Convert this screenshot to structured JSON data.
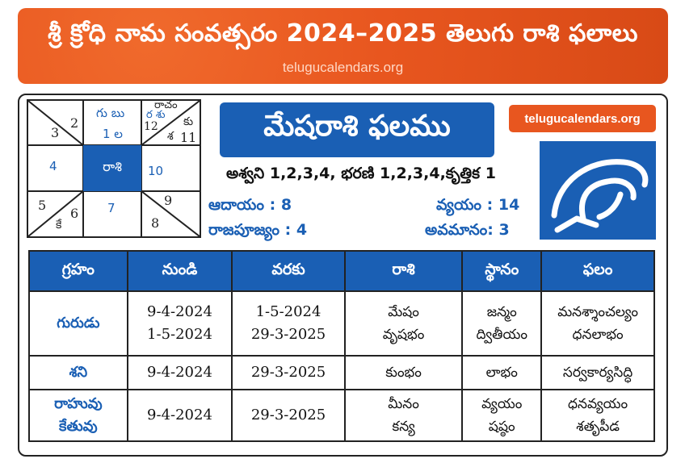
{
  "header": {
    "title": "శ్రీ క్రోధి నామ సంవత్సరం 2024–2025 తెలుగు రాశి ఫలాలు",
    "subtitle": "telugucalendars.org"
  },
  "chart": {
    "center": "రాశి",
    "cells": {
      "top_left_3": "3",
      "top_left_2": "2",
      "top_mid": "గు బు",
      "top_mid_num": "1 ల",
      "top_right_a": "రాచం",
      "top_right_b": "ర శు",
      "top_right_12": "12",
      "top_right_ku": "కు",
      "top_right_sa": "శ",
      "top_right_11": "11",
      "left_mid": "4",
      "right_mid": "10",
      "bot_left_5": "5",
      "bot_left_6": "6",
      "bot_left_ke": "కే",
      "bot_mid": "7",
      "bot_right_9": "9",
      "bot_right_8": "8"
    }
  },
  "title": "మేషరాశి ఫలము",
  "site_badge": "telugucalendars.org",
  "nakshatra": "అశ్వని 1,2,3,4, భరణి 1,2,3,4,కృత్తిక 1",
  "stats": {
    "aadayam": "ఆదాయం : 8",
    "vyayam": "వ్యయం : 14",
    "rajapujyam": "రాజపూజ్యం : 4",
    "avamanam": "అవమానం:  3"
  },
  "table": {
    "headers": [
      "గ్రహం",
      "నుండి",
      "వరకు",
      "రాశి",
      "స్థానం",
      "ఫలం"
    ],
    "rows": [
      {
        "planet": "గురుడు",
        "from": [
          "9-4-2024",
          "1-5-2024"
        ],
        "to": [
          "1-5-2024",
          "29-3-2025"
        ],
        "rasi": [
          "మేషం",
          "వృషభం"
        ],
        "sthanam": [
          "జన్మం",
          "ద్వితీయం"
        ],
        "phalam": [
          "మనశ్శాంచల్యం",
          "ధనలాభం"
        ]
      },
      {
        "planet": "శని",
        "from": [
          "9-4-2024"
        ],
        "to": [
          "29-3-2025"
        ],
        "rasi": [
          "కుంభం"
        ],
        "sthanam": [
          "లాభం"
        ],
        "phalam": [
          "సర్వకార్యసిద్ధి"
        ]
      },
      {
        "planet": [
          "రాహువు",
          "కేతువు"
        ],
        "from": [
          "9-4-2024"
        ],
        "to": [
          "29-3-2025"
        ],
        "rasi": [
          "మీనం",
          "కన్య"
        ],
        "sthanam": [
          "వ్యయం",
          "షష్ఠం"
        ],
        "phalam": [
          "ధనవ్యయం",
          "శతృపీడ"
        ]
      }
    ]
  },
  "colors": {
    "accent_blue": "#1a5fb4",
    "header_orange": "#e8561f"
  },
  "logo_icon": "aries-ram-icon"
}
